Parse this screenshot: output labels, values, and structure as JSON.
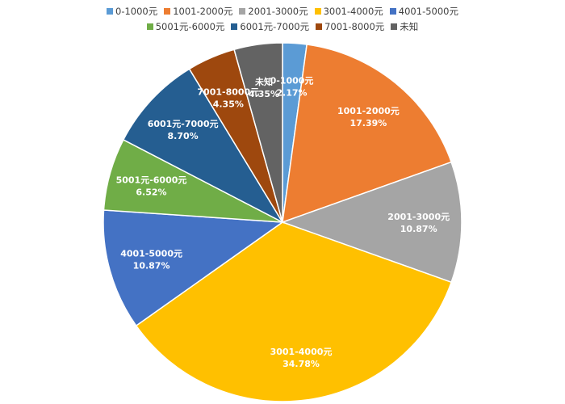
{
  "chart_data": {
    "type": "pie",
    "title": "",
    "legend_position": "top",
    "slices": [
      {
        "label": "0-1000元",
        "value": 2.17,
        "display": "2.17%",
        "color": "#5B9BD5"
      },
      {
        "label": "1001-2000元",
        "value": 17.39,
        "display": "17.39%",
        "color": "#ED7D31"
      },
      {
        "label": "2001-3000元",
        "value": 10.87,
        "display": "10.87%",
        "color": "#A5A5A5"
      },
      {
        "label": "3001-4000元",
        "value": 34.78,
        "display": "34.78%",
        "color": "#FFC000"
      },
      {
        "label": "4001-5000元",
        "value": 10.87,
        "display": "10.87%",
        "color": "#4472C4"
      },
      {
        "label": "5001元-6000元",
        "value": 6.52,
        "display": "6.52%",
        "color": "#70AD47"
      },
      {
        "label": "6001元-7000元",
        "value": 8.7,
        "display": "8.70%",
        "color": "#255E91"
      },
      {
        "label": "7001-8000元",
        "value": 4.35,
        "display": "4.35%",
        "color": "#9E480E"
      },
      {
        "label": "未知",
        "value": 4.35,
        "display": "4.35%",
        "color": "#636363"
      }
    ]
  }
}
